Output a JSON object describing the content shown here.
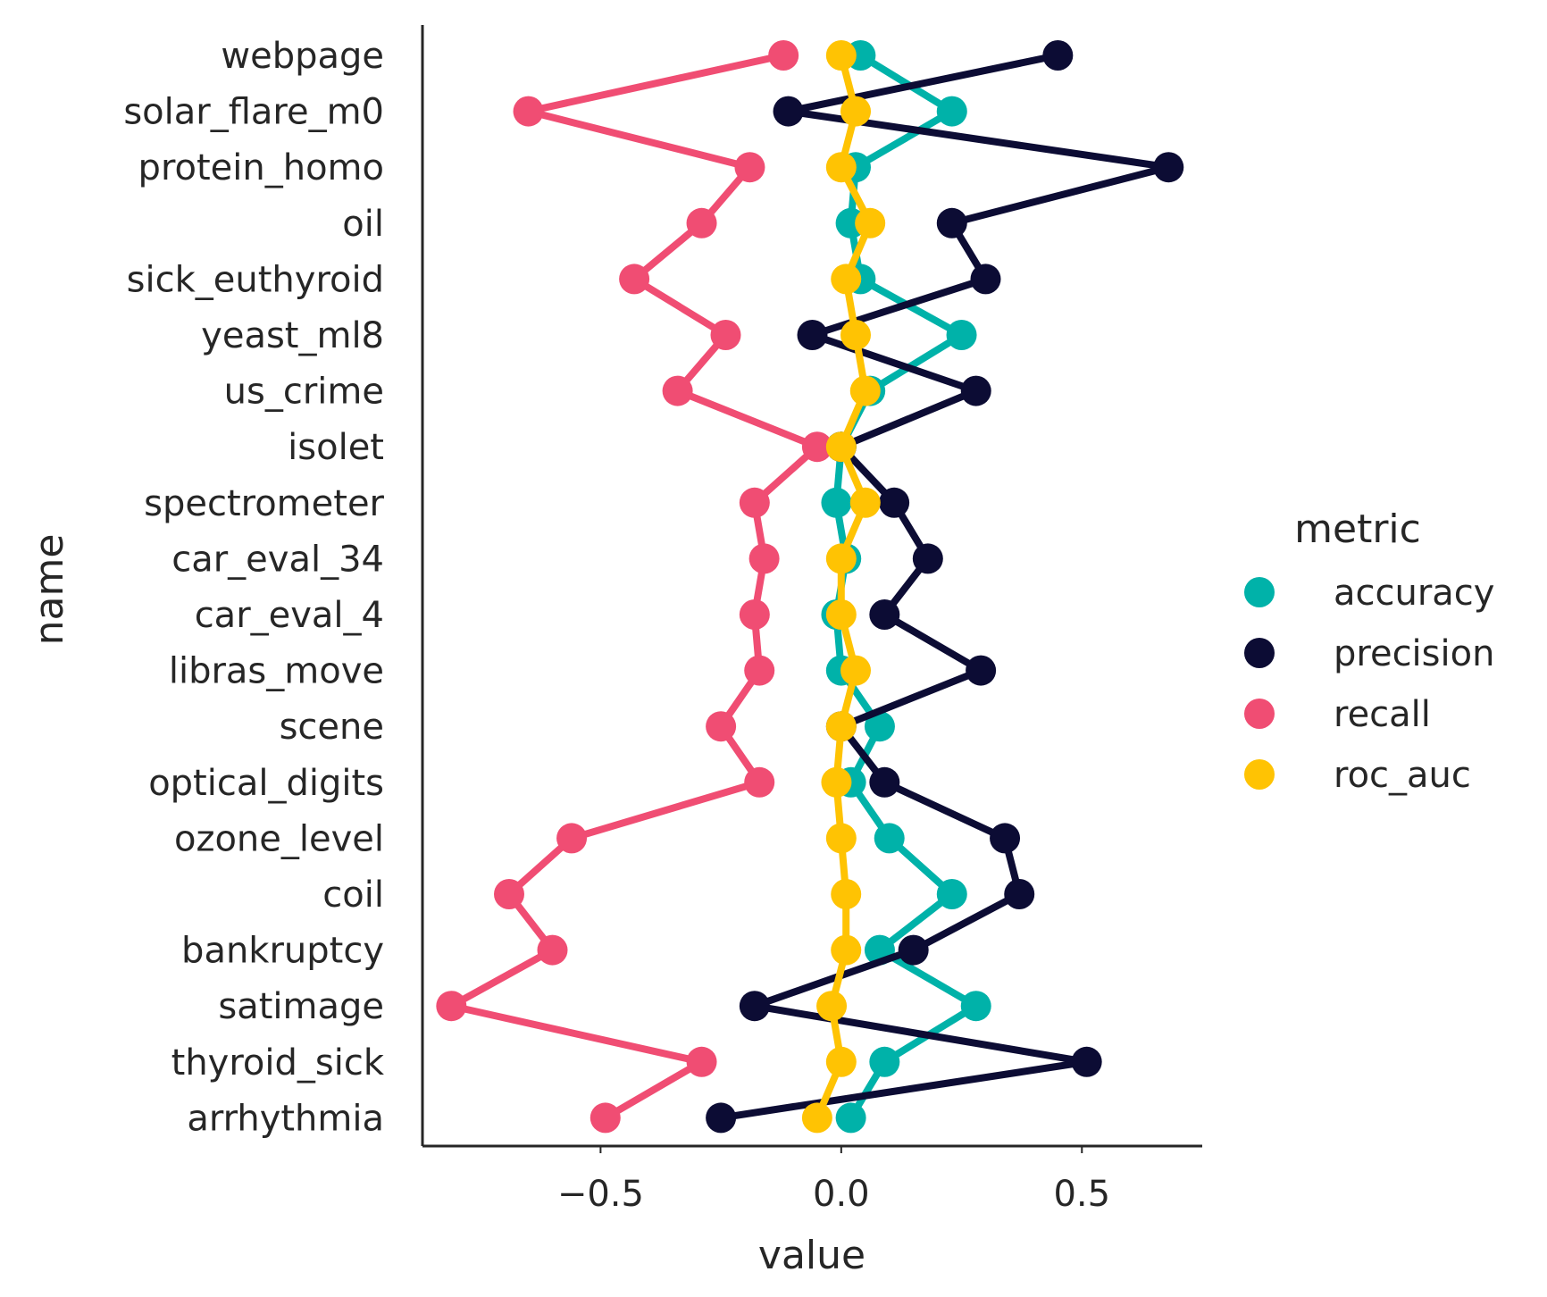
{
  "chart_data": {
    "type": "line",
    "orientation": "horizontal-pointplot",
    "xlabel": "value",
    "ylabel": "name",
    "xlim": [
      -0.87,
      0.75
    ],
    "xticks": [
      -0.5,
      0.0,
      0.5
    ],
    "xtick_labels": [
      "−0.5",
      "0.0",
      "0.5"
    ],
    "grid": false,
    "legend": {
      "title": "metric",
      "placement": "right"
    },
    "categories": [
      "webpage",
      "solar_flare_m0",
      "protein_homo",
      "oil",
      "sick_euthyroid",
      "yeast_ml8",
      "us_crime",
      "isolet",
      "spectrometer",
      "car_eval_34",
      "car_eval_4",
      "libras_move",
      "scene",
      "optical_digits",
      "ozone_level",
      "coil",
      "bankruptcy",
      "satimage",
      "thyroid_sick",
      "arrhythmia"
    ],
    "series": [
      {
        "name": "accuracy",
        "color": "#00b2a9",
        "values": [
          0.04,
          0.23,
          0.03,
          0.02,
          0.04,
          0.25,
          0.06,
          0.0,
          -0.01,
          0.01,
          -0.01,
          0.0,
          0.08,
          0.02,
          0.1,
          0.23,
          0.08,
          0.28,
          0.09,
          0.02
        ]
      },
      {
        "name": "precision",
        "color": "#0c0c34",
        "values": [
          0.45,
          -0.11,
          0.68,
          0.23,
          0.3,
          -0.06,
          0.28,
          0.0,
          0.11,
          0.18,
          0.09,
          0.29,
          0.0,
          0.09,
          0.34,
          0.37,
          0.15,
          -0.18,
          0.51,
          -0.25
        ]
      },
      {
        "name": "recall",
        "color": "#f04d73",
        "values": [
          -0.12,
          -0.65,
          -0.19,
          -0.29,
          -0.43,
          -0.24,
          -0.34,
          -0.05,
          -0.18,
          -0.16,
          -0.18,
          -0.17,
          -0.25,
          -0.17,
          -0.56,
          -0.69,
          -0.6,
          -0.81,
          -0.29,
          -0.49
        ]
      },
      {
        "name": "roc_auc",
        "color": "#ffc303",
        "values": [
          0.0,
          0.03,
          0.0,
          0.06,
          0.01,
          0.03,
          0.05,
          0.0,
          0.05,
          0.0,
          0.0,
          0.03,
          0.0,
          -0.01,
          0.0,
          0.01,
          0.01,
          -0.02,
          0.0,
          -0.05
        ]
      }
    ]
  }
}
